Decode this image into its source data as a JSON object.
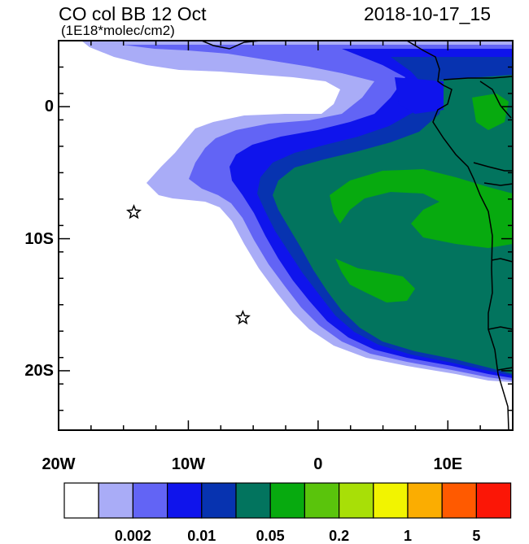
{
  "title_left": "CO col BB 12 Oct",
  "units": "(1E18*molec/cm2)",
  "title_right": "2018-10-17_15",
  "axes": {
    "x_ticks": [
      {
        "lon": -20,
        "label": "20W"
      },
      {
        "lon": -10,
        "label": "10W"
      },
      {
        "lon": 0,
        "label": "0"
      },
      {
        "lon": 10,
        "label": "10E"
      }
    ],
    "y_ticks": [
      {
        "lat": 0,
        "label": "0"
      },
      {
        "lat": -10,
        "label": "10S"
      },
      {
        "lat": -20,
        "label": "20S"
      }
    ],
    "lon_range": [
      -20,
      15
    ],
    "lat_range": [
      -24.5,
      5
    ]
  },
  "markers": [
    {
      "name": "star",
      "lon": -14.2,
      "lat": -8.0
    },
    {
      "name": "star",
      "lon": -5.8,
      "lat": -16.0
    }
  ],
  "colorbar": {
    "colors": [
      "#ffffff",
      "#a9acf7",
      "#6264f5",
      "#0f14ec",
      "#0733b0",
      "#02745e",
      "#07aa0f",
      "#5ac40c",
      "#a8df07",
      "#f2f400",
      "#fbad01",
      "#ff5a00",
      "#fb1606"
    ],
    "labels": [
      {
        "after_box": 2,
        "text": "0.002"
      },
      {
        "after_box": 4,
        "text": "0.01"
      },
      {
        "after_box": 6,
        "text": "0.05"
      },
      {
        "after_box": 8,
        "text": "0.2"
      },
      {
        "after_box": 10,
        "text": "1"
      },
      {
        "after_box": 12,
        "text": "5"
      }
    ]
  }
}
